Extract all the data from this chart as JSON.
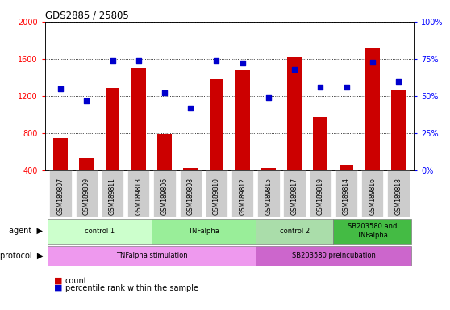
{
  "title": "GDS2885 / 25805",
  "samples": [
    "GSM189807",
    "GSM189809",
    "GSM189811",
    "GSM189813",
    "GSM189806",
    "GSM189808",
    "GSM189810",
    "GSM189812",
    "GSM189815",
    "GSM189817",
    "GSM189819",
    "GSM189814",
    "GSM189816",
    "GSM189818"
  ],
  "counts": [
    750,
    530,
    1290,
    1500,
    790,
    430,
    1380,
    1480,
    430,
    1620,
    975,
    460,
    1720,
    1260
  ],
  "percentiles": [
    55,
    47,
    74,
    74,
    52,
    42,
    74,
    72,
    49,
    68,
    56,
    56,
    73,
    60
  ],
  "ylim_left": [
    400,
    2000
  ],
  "ylim_right": [
    0,
    100
  ],
  "yticks_left": [
    400,
    800,
    1200,
    1600,
    2000
  ],
  "yticks_right": [
    0,
    25,
    50,
    75,
    100
  ],
  "bar_color": "#cc0000",
  "dot_color": "#0000cc",
  "agent_groups": [
    {
      "label": "control 1",
      "start": 0,
      "end": 4,
      "color": "#ccffcc"
    },
    {
      "label": "TNFalpha",
      "start": 4,
      "end": 8,
      "color": "#99ee99"
    },
    {
      "label": "control 2",
      "start": 8,
      "end": 11,
      "color": "#aaddaa"
    },
    {
      "label": "SB203580 and\nTNFalpha",
      "start": 11,
      "end": 14,
      "color": "#44bb44"
    }
  ],
  "protocol_groups": [
    {
      "label": "TNFalpha stimulation",
      "start": 0,
      "end": 8,
      "color": "#ee99ee"
    },
    {
      "label": "SB203580 preincubation",
      "start": 8,
      "end": 14,
      "color": "#cc66cc"
    }
  ],
  "tick_bg_color": "#cccccc",
  "spine_color": "#888888"
}
